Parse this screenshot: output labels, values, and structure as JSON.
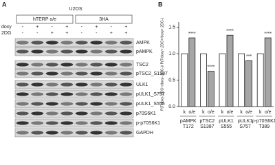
{
  "panel_a": {
    "letter": "A",
    "cell_line": "U2OS",
    "groups": [
      "hTERP o/e",
      "3HA"
    ],
    "conditions": [
      {
        "name": "doxy",
        "signs": [
          "-",
          "+",
          "-",
          "+",
          "-",
          "+",
          "-",
          "+"
        ]
      },
      {
        "name": "2DG",
        "signs": [
          "-",
          "-",
          "+",
          "+",
          "-",
          "-",
          "+",
          "+"
        ]
      }
    ],
    "blots": [
      "AMPK",
      "pAMPK",
      "TSC2",
      "pTSC2_S1387",
      "ULK1",
      "pULK1_S757",
      "pULK1_S555",
      "p70S6K1",
      "p-p70S6K1",
      "GAPDH"
    ]
  },
  "chart_data": {
    "type": "bar",
    "letter": "B",
    "y_label": "P(T/doxy-,2DG+/doxy-,2DG-)/ P(T/doxy+,2DG+/doxy+,2DG-)",
    "categories": [
      [
        "pAMPK",
        "T172"
      ],
      [
        "pTSC2",
        "S1387"
      ],
      [
        "pULK1",
        "S555"
      ],
      [
        "pULK1",
        "S757"
      ],
      [
        "p-p70S6K1",
        "T389"
      ]
    ],
    "series": [
      {
        "name": "k",
        "color": "#ffffff",
        "values": [
          1.0,
          1.0,
          1.0,
          1.0,
          1.0
        ]
      },
      {
        "name": "o/e",
        "color": "#a6a6a6",
        "values": [
          1.3,
          0.67,
          1.35,
          0.87,
          1.3
        ]
      }
    ],
    "annotations": [
      "****",
      "****",
      "****",
      "***",
      "****"
    ],
    "ylim": [
      0,
      1.6
    ],
    "yticks": [
      {
        "value": 0,
        "label": "0.0"
      },
      0.5,
      {
        "value": 1,
        "label": "1.0"
      },
      1.5
    ]
  }
}
